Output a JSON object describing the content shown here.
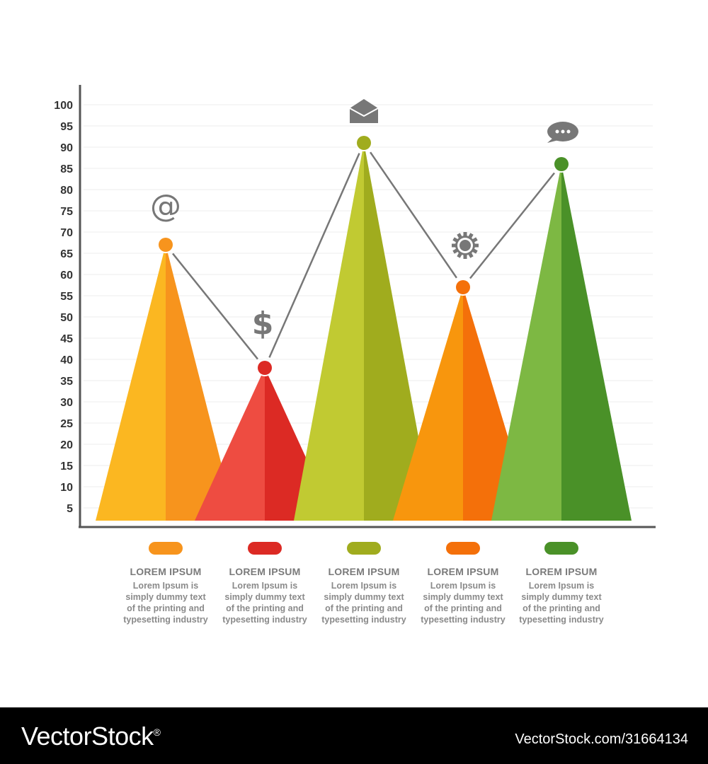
{
  "chart_data": {
    "type": "bar",
    "subtype": "triangle-peak",
    "yticks": [
      5,
      10,
      15,
      20,
      25,
      30,
      35,
      40,
      45,
      50,
      55,
      60,
      65,
      70,
      75,
      80,
      85,
      90,
      95,
      100
    ],
    "ylim": [
      0,
      100
    ],
    "grid": true,
    "series": [
      {
        "value": 67,
        "icon": "at-sign-icon",
        "color_light": "#fbb721",
        "color_dark": "#f7941d",
        "dot": "#f7941d",
        "pill": "#f7941d"
      },
      {
        "value": 38,
        "icon": "dollar-icon",
        "color_light": "#ee4c41",
        "color_dark": "#dc2a24",
        "dot": "#dc2a24",
        "pill": "#dc2a24"
      },
      {
        "value": 91,
        "icon": "envelope-icon",
        "color_light": "#c1ca32",
        "color_dark": "#a0ac1e",
        "dot": "#a0ac1e",
        "pill": "#a0ac1e"
      },
      {
        "value": 57,
        "icon": "gear-icon",
        "color_light": "#f8960d",
        "color_dark": "#f4700a",
        "dot": "#f4700a",
        "pill": "#f4700a"
      },
      {
        "value": 86,
        "icon": "chat-bubble-icon",
        "color_light": "#7db843",
        "color_dark": "#4a9128",
        "dot": "#4a9128",
        "pill": "#4a9128"
      }
    ]
  },
  "legend": [
    {
      "title": "LOREM IPSUM",
      "desc": [
        "Lorem Ipsum is",
        "simply dummy text",
        "of the printing and",
        "typesetting industry"
      ]
    },
    {
      "title": "LOREM IPSUM",
      "desc": [
        "Lorem Ipsum is",
        "simply dummy text",
        "of the printing and",
        "typesetting industry"
      ]
    },
    {
      "title": "LOREM IPSUM",
      "desc": [
        "Lorem Ipsum is",
        "simply dummy text",
        "of the printing and",
        "typesetting industry"
      ]
    },
    {
      "title": "LOREM IPSUM",
      "desc": [
        "Lorem Ipsum is",
        "simply dummy text",
        "of the printing and",
        "typesetting industry"
      ]
    },
    {
      "title": "LOREM IPSUM",
      "desc": [
        "Lorem Ipsum is",
        "simply dummy text",
        "of the printing and",
        "typesetting industry"
      ]
    }
  ],
  "footer": {
    "brand": "VectorStock",
    "brand_mark": "®",
    "url": "VectorStock.com/31664134"
  },
  "colors": {
    "axis": "#555555",
    "grid": "#eeeeee",
    "tick_text": "#333333",
    "connector": "#777777",
    "icon": "#777777"
  }
}
